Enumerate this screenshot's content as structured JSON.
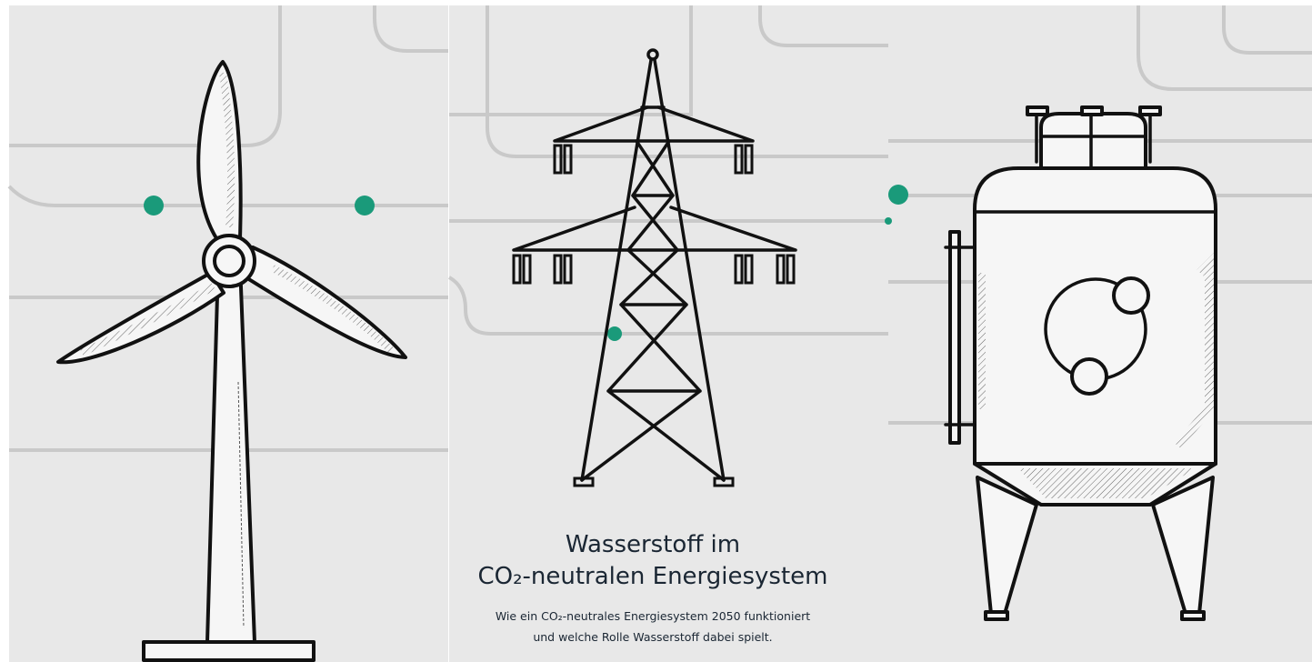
{
  "hero": {
    "title_lines": [
      "Wasserstoff im",
      "CO₂-neutralen Energiesystem"
    ],
    "subtitle_lines": [
      "Wie ein CO₂-neutrales Energiesystem 2050 funktioniert",
      "und welche Rolle Wasserstoff dabei spielt."
    ]
  }
}
